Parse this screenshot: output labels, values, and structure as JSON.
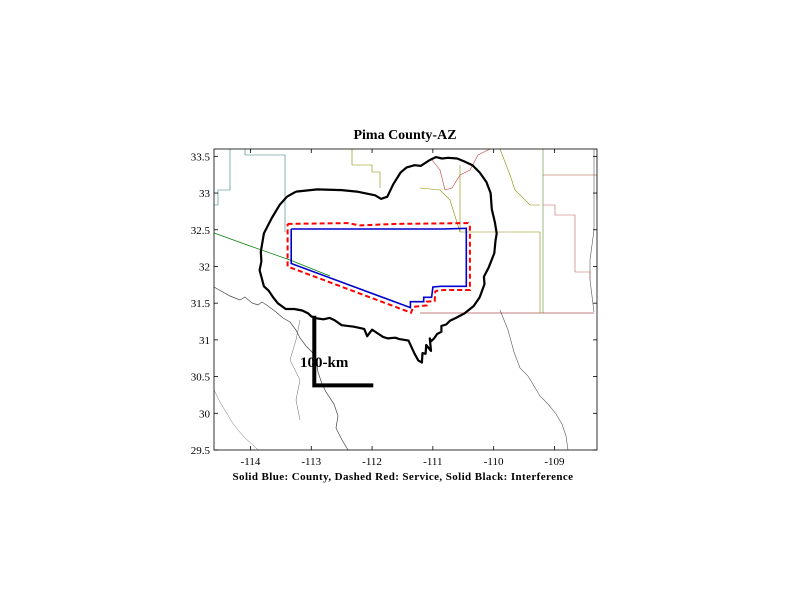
{
  "figure": {
    "title": "Pima County-AZ",
    "caption": "Solid Blue: County, Dashed Red: Service, Solid Black: Interference",
    "scale_bar_label": "100-km"
  },
  "chart_data": {
    "type": "map",
    "title": "Pima County-AZ",
    "xlim": [
      -114.6,
      -108.3
    ],
    "ylim": [
      29.5,
      33.6
    ],
    "x_ticks": [
      -114,
      -113,
      -112,
      -111,
      -110,
      -109
    ],
    "y_ticks": [
      29.5,
      30,
      30.5,
      31,
      31.5,
      32,
      32.5,
      33,
      33.5
    ],
    "x_tick_labels": [
      "-114",
      "-113",
      "-112",
      "-111",
      "-110",
      "-109"
    ],
    "y_tick_labels": [
      "29.5",
      "30",
      "30.5",
      "31",
      "31.5",
      "32",
      "32.5",
      "33",
      "33.5"
    ],
    "colors": {
      "county": "#0000cc",
      "service": "#ff0000",
      "interference": "#000000"
    },
    "county_boundary": [
      [
        -113.33,
        32.51
      ],
      [
        -110.83,
        32.51
      ],
      [
        -110.45,
        32.52
      ],
      [
        -110.45,
        31.73
      ],
      [
        -110.87,
        31.73
      ],
      [
        -111.0,
        31.72
      ],
      [
        -111.02,
        31.58
      ],
      [
        -111.15,
        31.58
      ],
      [
        -111.15,
        31.52
      ],
      [
        -111.37,
        31.52
      ],
      [
        -111.37,
        31.44
      ],
      [
        -113.33,
        32.04
      ],
      [
        -113.33,
        32.51
      ]
    ],
    "service_contour": [
      [
        -113.39,
        32.58
      ],
      [
        -112.4,
        32.59
      ],
      [
        -112.2,
        32.56
      ],
      [
        -111.6,
        32.58
      ],
      [
        -110.42,
        32.59
      ],
      [
        -110.39,
        32.56
      ],
      [
        -110.39,
        31.68
      ],
      [
        -110.82,
        31.68
      ],
      [
        -110.93,
        31.67
      ],
      [
        -110.96,
        31.66
      ],
      [
        -110.97,
        31.53
      ],
      [
        -111.1,
        31.52
      ],
      [
        -111.1,
        31.47
      ],
      [
        -111.32,
        31.45
      ],
      [
        -111.36,
        31.37
      ],
      [
        -113.39,
        32.0
      ],
      [
        -113.39,
        32.58
      ]
    ],
    "interference_contour": [
      [
        -113.25,
        33.02
      ],
      [
        -112.9,
        33.05
      ],
      [
        -112.5,
        33.04
      ],
      [
        -112.25,
        33.02
      ],
      [
        -111.95,
        32.97
      ],
      [
        -111.85,
        32.92
      ],
      [
        -111.75,
        32.95
      ],
      [
        -111.65,
        33.12
      ],
      [
        -111.53,
        33.28
      ],
      [
        -111.43,
        33.35
      ],
      [
        -111.3,
        33.38
      ],
      [
        -111.2,
        33.37
      ],
      [
        -111.05,
        33.45
      ],
      [
        -110.95,
        33.49
      ],
      [
        -110.85,
        33.47
      ],
      [
        -110.75,
        33.48
      ],
      [
        -110.6,
        33.47
      ],
      [
        -110.48,
        33.43
      ],
      [
        -110.35,
        33.38
      ],
      [
        -110.23,
        33.28
      ],
      [
        -110.12,
        33.15
      ],
      [
        -110.05,
        33.0
      ],
      [
        -110.03,
        32.78
      ],
      [
        -109.98,
        32.6
      ],
      [
        -109.95,
        32.45
      ],
      [
        -109.97,
        32.35
      ],
      [
        -109.99,
        32.18
      ],
      [
        -110.08,
        31.99
      ],
      [
        -110.16,
        31.86
      ],
      [
        -110.15,
        31.76
      ],
      [
        -110.23,
        31.58
      ],
      [
        -110.33,
        31.46
      ],
      [
        -110.48,
        31.36
      ],
      [
        -110.62,
        31.3
      ],
      [
        -110.72,
        31.26
      ],
      [
        -110.78,
        31.21
      ],
      [
        -110.86,
        31.19
      ],
      [
        -110.86,
        31.11
      ],
      [
        -110.93,
        31.08
      ],
      [
        -110.98,
        31.02
      ],
      [
        -111.03,
        30.98
      ],
      [
        -111.05,
        31.02
      ],
      [
        -111.03,
        30.85
      ],
      [
        -111.11,
        30.93
      ],
      [
        -111.12,
        30.81
      ],
      [
        -111.17,
        30.82
      ],
      [
        -111.18,
        30.69
      ],
      [
        -111.24,
        30.72
      ],
      [
        -111.3,
        30.81
      ],
      [
        -111.4,
        30.99
      ],
      [
        -111.55,
        31.01
      ],
      [
        -111.62,
        31.03
      ],
      [
        -111.74,
        31.02
      ],
      [
        -111.82,
        31.04
      ],
      [
        -111.93,
        31.1
      ],
      [
        -112.0,
        31.14
      ],
      [
        -112.08,
        31.05
      ],
      [
        -112.13,
        31.15
      ],
      [
        -112.3,
        31.18
      ],
      [
        -112.5,
        31.2
      ],
      [
        -112.62,
        31.27
      ],
      [
        -112.7,
        31.3
      ],
      [
        -112.8,
        31.28
      ],
      [
        -112.88,
        31.29
      ],
      [
        -112.95,
        31.3
      ],
      [
        -113.0,
        31.32
      ],
      [
        -113.05,
        31.36
      ],
      [
        -113.15,
        31.4
      ],
      [
        -113.28,
        31.42
      ],
      [
        -113.42,
        31.42
      ],
      [
        -113.55,
        31.5
      ],
      [
        -113.62,
        31.57
      ],
      [
        -113.7,
        31.67
      ],
      [
        -113.78,
        31.73
      ],
      [
        -113.85,
        31.95
      ],
      [
        -113.82,
        32.07
      ],
      [
        -113.83,
        32.2
      ],
      [
        -113.78,
        32.45
      ],
      [
        -113.65,
        32.66
      ],
      [
        -113.52,
        32.84
      ],
      [
        -113.4,
        32.95
      ],
      [
        -113.25,
        33.02
      ]
    ],
    "scale_bar": {
      "length_km": 100,
      "label": "100-km",
      "origin": [
        -112.95,
        30.38
      ],
      "end_x": -111.98,
      "end_y": 31.33
    }
  }
}
